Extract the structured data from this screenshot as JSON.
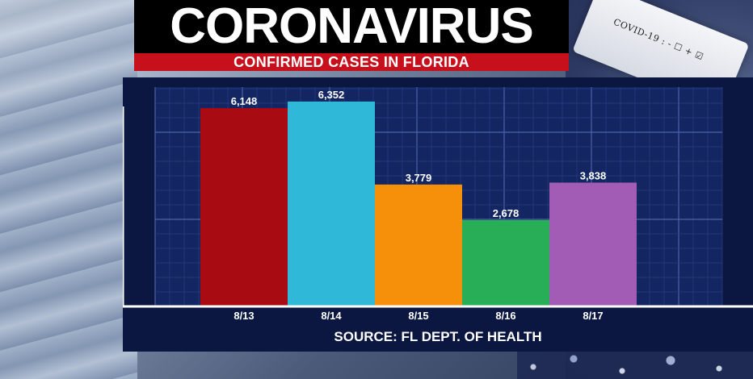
{
  "header": {
    "title": "CORONAVIRUS",
    "subtitle": "CONFIRMED CASES IN FLORIDA"
  },
  "background": {
    "tube_label": "COVID-19 : - ☐ + ☑"
  },
  "footer": {
    "source": "SOURCE: FL DEPT. OF HEALTH"
  },
  "chart_data": {
    "type": "bar",
    "title": "CONFIRMED CASES IN FLORIDA",
    "categories": [
      "8/13",
      "8/14",
      "8/15",
      "8/16",
      "8/17"
    ],
    "values": [
      6148,
      6352,
      3779,
      2678,
      3838
    ],
    "value_labels": [
      "6,148",
      "6,352",
      "3,779",
      "2,678",
      "3,838"
    ],
    "colors": [
      "#a80b12",
      "#2fb8d8",
      "#f6900a",
      "#27ae56",
      "#a35cb6"
    ],
    "ylim": [
      0,
      6800
    ],
    "grid": true,
    "xlabel": "",
    "ylabel": ""
  }
}
